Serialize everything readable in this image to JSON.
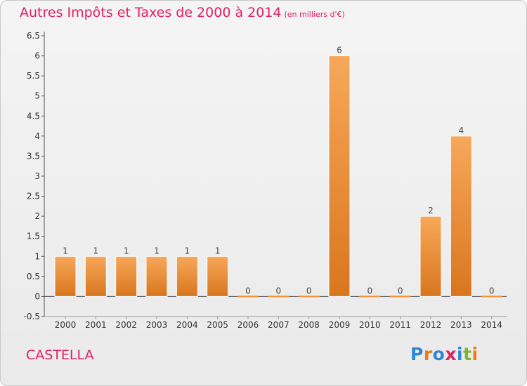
{
  "chart_data": {
    "type": "bar",
    "title": "Autres Impôts et Taxes de 2000 à 2014",
    "subtitle": "(en milliers d'€)",
    "categories": [
      "2000",
      "2001",
      "2002",
      "2003",
      "2004",
      "2005",
      "2006",
      "2007",
      "2008",
      "2009",
      "2010",
      "2011",
      "2012",
      "2013",
      "2014"
    ],
    "values": [
      1,
      1,
      1,
      1,
      1,
      1,
      0,
      0,
      0,
      6,
      0,
      0,
      2,
      4,
      0
    ],
    "data_labels": [
      "1",
      "1",
      "1",
      "1",
      "1",
      "1",
      "0",
      "0",
      "0",
      "6",
      "0",
      "0",
      "2",
      "4",
      "0"
    ],
    "yticks": [
      "-0.5",
      "0",
      "0.5",
      "1",
      "1.5",
      "2",
      "2.5",
      "3",
      "3.5",
      "4",
      "4.5",
      "5",
      "5.5",
      "6",
      "6.5"
    ],
    "ylim": [
      -0.5,
      6.5
    ],
    "grid": false,
    "bar_color": "#f0943a",
    "bar_color_light": "#f7a85a",
    "bar_color_dark": "#d9761e",
    "xlabel": "",
    "ylabel": ""
  },
  "footer": {
    "commune": "CASTELLA",
    "logo_letters": [
      {
        "char": "P",
        "color": "#2f86d6"
      },
      {
        "char": "r",
        "color": "#f07a1a"
      },
      {
        "char": "o",
        "color": "#2f86d6"
      },
      {
        "char": "x",
        "color": "#e0215f"
      },
      {
        "char": "i",
        "color": "#2f86d6"
      },
      {
        "char": "t",
        "color": "#7cb82f"
      },
      {
        "char": "i",
        "color": "#f07a1a"
      }
    ]
  },
  "colors": {
    "title": "#e0215f",
    "axis": "#555555",
    "text": "#333333"
  }
}
